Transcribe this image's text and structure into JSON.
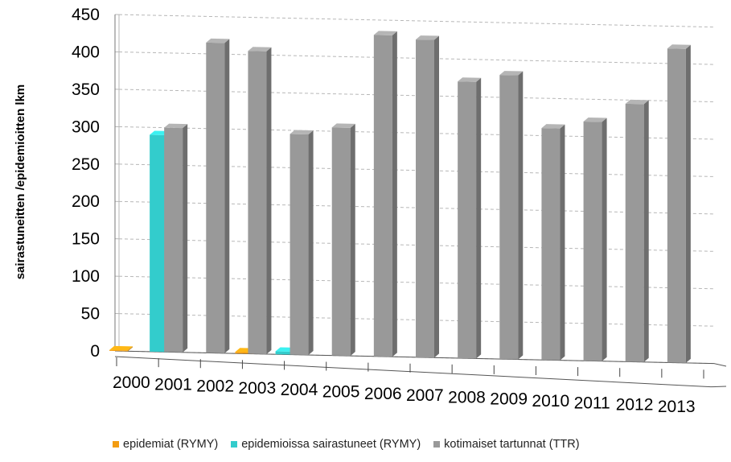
{
  "chart_data": {
    "type": "bar",
    "title": "",
    "xlabel": "",
    "ylabel": "sairastuneitten /epidemioitten lkm",
    "ylim": [
      0,
      450
    ],
    "yticks": [
      0,
      50,
      100,
      150,
      200,
      250,
      300,
      350,
      400,
      450
    ],
    "grid": true,
    "legend_position": "bottom",
    "categories": [
      "2000",
      "2001",
      "2002",
      "2003",
      "2004",
      "2005",
      "2006",
      "2007",
      "2008",
      "2009",
      "2010",
      "2011",
      "2012",
      "2013"
    ],
    "series": [
      {
        "name": "epidemiat (RYMY)",
        "color": "#f39c12",
        "values": [
          1,
          null,
          null,
          2,
          null,
          null,
          null,
          null,
          null,
          null,
          null,
          null,
          null,
          null
        ]
      },
      {
        "name": "epidemioissa sairastuneet (RYMY)",
        "color": "#33cccc",
        "values": [
          null,
          290,
          null,
          null,
          4,
          null,
          null,
          null,
          null,
          null,
          null,
          null,
          null,
          null
        ]
      },
      {
        "name": "kotimaiset tartunnat (TTR)",
        "color": "#999999",
        "values": [
          null,
          300,
          415,
          405,
          295,
          305,
          430,
          425,
          370,
          380,
          310,
          320,
          345,
          420
        ]
      }
    ]
  }
}
